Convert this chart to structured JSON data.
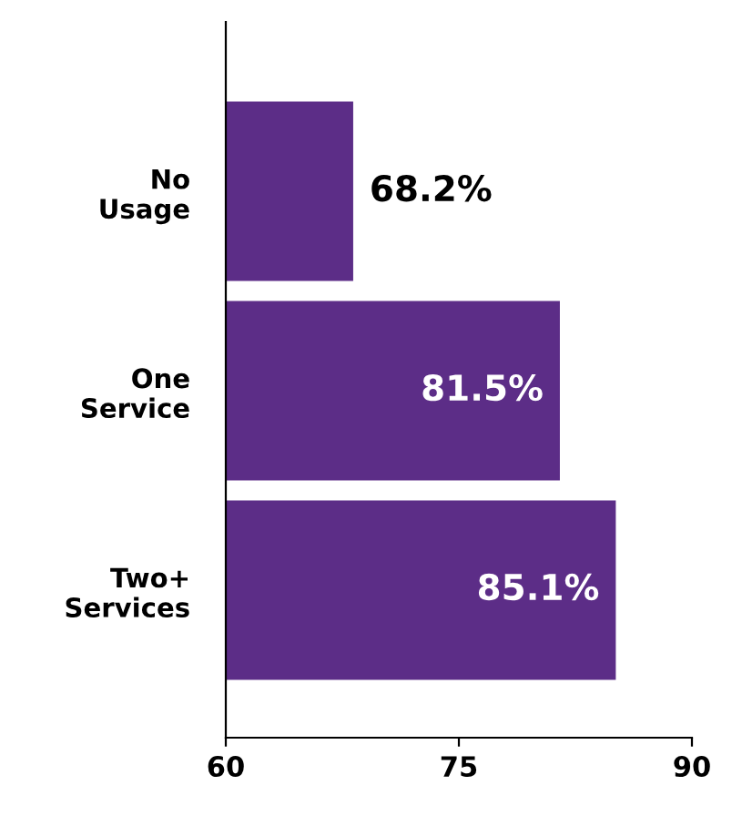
{
  "chart_data": {
    "type": "bar",
    "orientation": "horizontal",
    "categories": [
      "No Usage",
      "One Service",
      "Two+ Services"
    ],
    "values": [
      68.2,
      81.5,
      85.1
    ],
    "value_labels": [
      "68.2%",
      "81.5%",
      "85.1%"
    ],
    "color": "#5c2d87",
    "xlim": [
      60,
      90
    ],
    "xticks": [
      60,
      75,
      90
    ],
    "grid": false,
    "legend": false
  }
}
